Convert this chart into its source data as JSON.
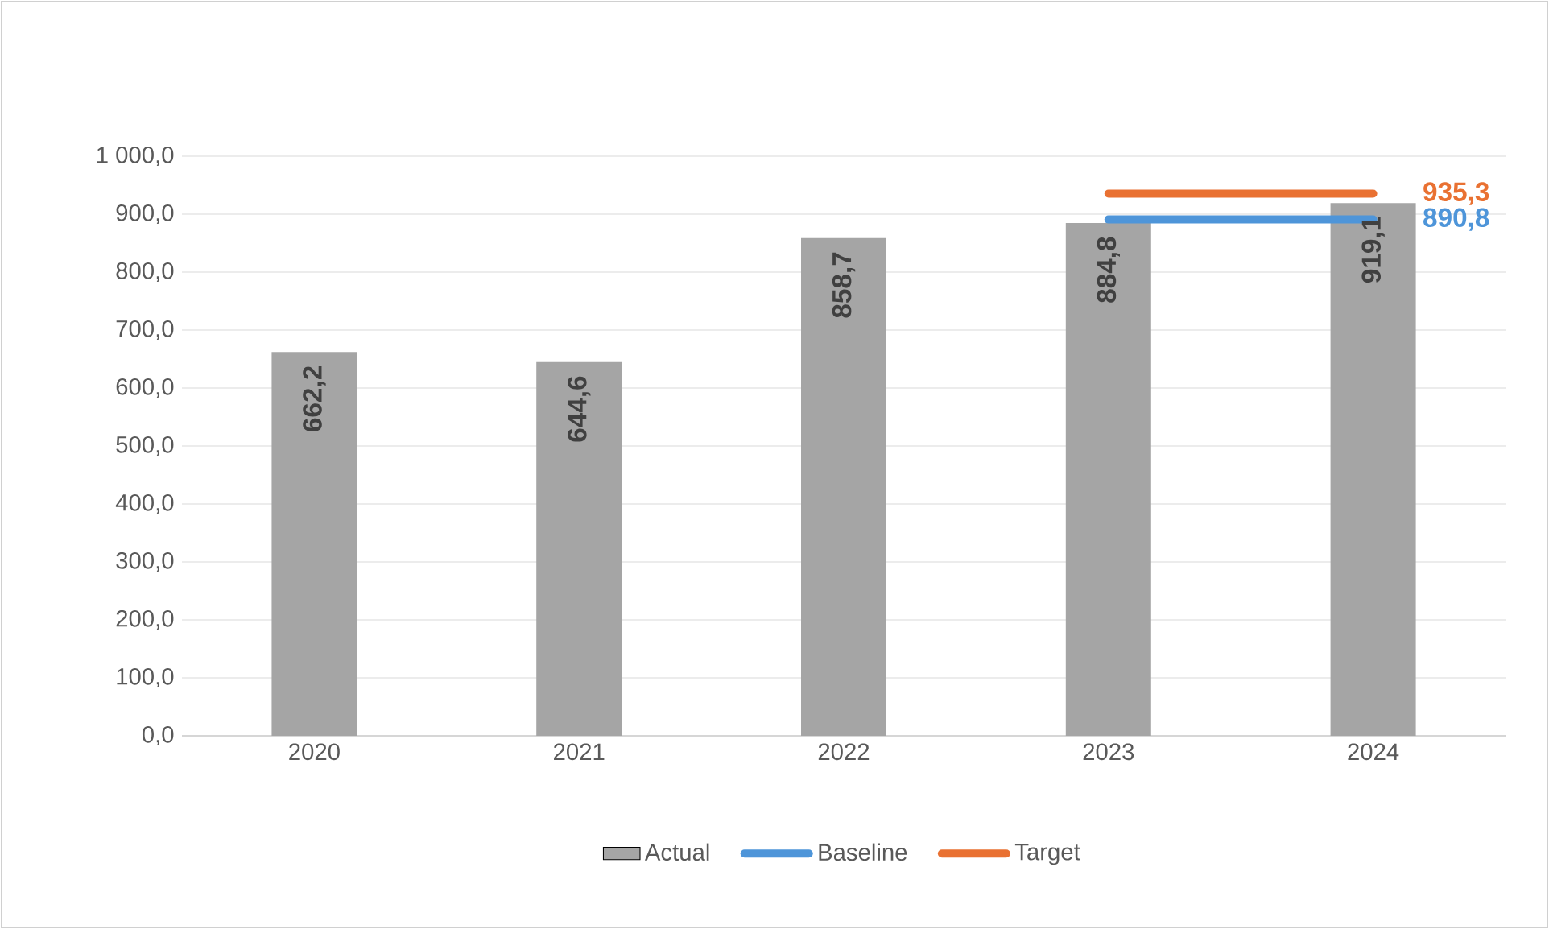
{
  "chart_data": {
    "type": "bar",
    "categories": [
      "2020",
      "2021",
      "2022",
      "2023",
      "2024"
    ],
    "series": [
      {
        "name": "Actual",
        "color": "#a5a5a5",
        "values": [
          662.2,
          644.6,
          858.7,
          884.8,
          919.1
        ],
        "value_labels": [
          "662,2",
          "644,6",
          "858,7",
          "884,8",
          "919,1"
        ]
      },
      {
        "name": "Baseline",
        "type": "line",
        "color": "#4e95d9",
        "values": [
          null,
          null,
          null,
          890.8,
          890.8
        ],
        "value_labels": [
          null,
          null,
          null,
          null,
          "890,8"
        ]
      },
      {
        "name": "Target",
        "type": "line",
        "color": "#e97132",
        "values": [
          null,
          null,
          null,
          935.3,
          935.3
        ],
        "value_labels": [
          null,
          null,
          null,
          null,
          "935,3"
        ]
      }
    ],
    "ylim": [
      0,
      1000
    ],
    "yticks": [
      {
        "value": 0,
        "label": "0,0"
      },
      {
        "value": 100,
        "label": "100,0"
      },
      {
        "value": 200,
        "label": "200,0"
      },
      {
        "value": 300,
        "label": "300,0"
      },
      {
        "value": 400,
        "label": "400,0"
      },
      {
        "value": 500,
        "label": "500,0"
      },
      {
        "value": 600,
        "label": "600,0"
      },
      {
        "value": 700,
        "label": "700,0"
      },
      {
        "value": 800,
        "label": "800,0"
      },
      {
        "value": 900,
        "label": "900,0"
      },
      {
        "value": 1000,
        "label": "1 000,0"
      }
    ],
    "grid": "y",
    "legend": "bottom"
  }
}
